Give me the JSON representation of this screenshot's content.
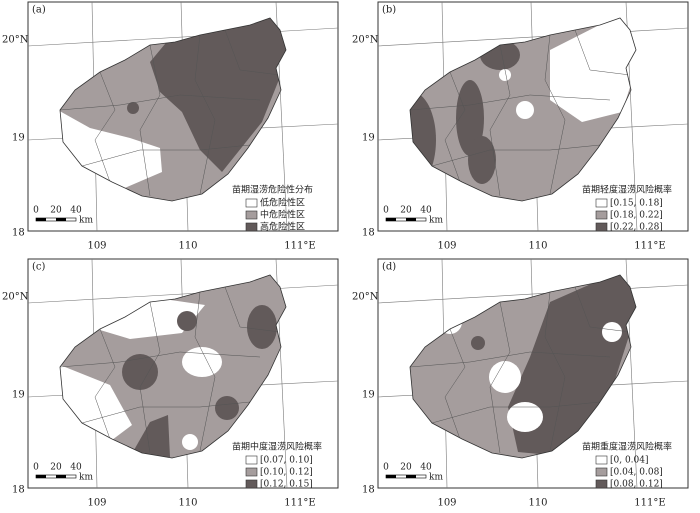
{
  "panels": [
    {
      "label": "(a)",
      "y_labels": [
        "20°N",
        "19",
        "18"
      ],
      "x_labels": [
        "109",
        "110",
        "111°E"
      ],
      "scale_labels": [
        "0",
        "20",
        "40",
        "km"
      ],
      "legend_title": "苗期湿涝危险性分布",
      "legend_items": [
        "低危险性区",
        "中危险性区",
        "高危险性区"
      ]
    },
    {
      "label": "(b)",
      "y_labels": [
        "20°N",
        "19",
        "18"
      ],
      "x_labels": [
        "109",
        "110",
        "111°E"
      ],
      "scale_labels": [
        "0",
        "20",
        "40",
        "km"
      ],
      "legend_title": "苗期轻度湿涝风险概率",
      "legend_items": [
        "[0.15, 0.18]",
        "[0.18, 0.22]",
        "[0.22, 0.28]"
      ]
    },
    {
      "label": "(c)",
      "y_labels": [
        "20°N",
        "19",
        "18"
      ],
      "x_labels": [
        "109",
        "110",
        "111°E"
      ],
      "scale_labels": [
        "0",
        "20",
        "40",
        "km"
      ],
      "legend_title": "苗期中度湿涝风险概率",
      "legend_items": [
        "[0.07, 0.10]",
        "[0.10, 0.12]",
        "[0.12, 0.15]"
      ]
    },
    {
      "label": "(d)",
      "y_labels": [
        "20°N",
        "19",
        "18"
      ],
      "x_labels": [
        "109",
        "110",
        "111°E"
      ],
      "scale_labels": [
        "0",
        "20",
        "40",
        "km"
      ],
      "legend_title": "苗期重度湿涝风险概率",
      "legend_items": [
        "[0, 0.04]",
        "[0.04, 0.08]",
        "[0.08, 0.12]"
      ]
    }
  ]
}
